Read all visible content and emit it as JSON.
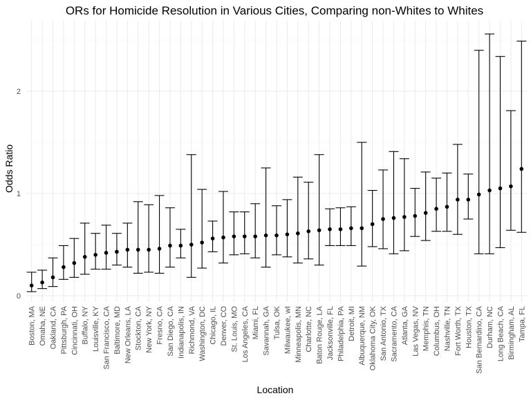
{
  "chart_data": {
    "type": "errorbar",
    "title": "ORs for Homicide Resolution in Various Cities, Comparing non-Whites to Whites",
    "xlabel": "Location",
    "ylabel": "Odds Ratio",
    "ylim": [
      -0.04,
      2.57
    ],
    "yticks": [
      0,
      1,
      2
    ],
    "grid": true,
    "legend": "none",
    "point_color": "#000000",
    "points": [
      {
        "city": "Boston, MA",
        "estimate": 0.1,
        "lower": 0.04,
        "upper": 0.23
      },
      {
        "city": "Omaha, NE",
        "estimate": 0.13,
        "lower": 0.07,
        "upper": 0.25
      },
      {
        "city": "Oakland, CA",
        "estimate": 0.18,
        "lower": 0.09,
        "upper": 0.37
      },
      {
        "city": "Pittsburgh, PA",
        "estimate": 0.28,
        "lower": 0.16,
        "upper": 0.49
      },
      {
        "city": "Cincinnati, OH",
        "estimate": 0.32,
        "lower": 0.18,
        "upper": 0.56
      },
      {
        "city": "Buffalo, NY",
        "estimate": 0.38,
        "lower": 0.21,
        "upper": 0.71
      },
      {
        "city": "Louisville, KY",
        "estimate": 0.4,
        "lower": 0.26,
        "upper": 0.61
      },
      {
        "city": "San Francisco, CA",
        "estimate": 0.42,
        "lower": 0.26,
        "upper": 0.69
      },
      {
        "city": "Baltimore, MD",
        "estimate": 0.43,
        "lower": 0.3,
        "upper": 0.61
      },
      {
        "city": "New Orleans, LA",
        "estimate": 0.45,
        "lower": 0.28,
        "upper": 0.71
      },
      {
        "city": "Stockton, CA",
        "estimate": 0.45,
        "lower": 0.22,
        "upper": 0.92
      },
      {
        "city": "New York, NY",
        "estimate": 0.45,
        "lower": 0.23,
        "upper": 0.89
      },
      {
        "city": "Fresno, CA",
        "estimate": 0.46,
        "lower": 0.22,
        "upper": 0.98
      },
      {
        "city": "San Diego, CA",
        "estimate": 0.49,
        "lower": 0.28,
        "upper": 0.86
      },
      {
        "city": "Indianapolis, IN",
        "estimate": 0.49,
        "lower": 0.37,
        "upper": 0.65
      },
      {
        "city": "Richmond, VA",
        "estimate": 0.5,
        "lower": 0.18,
        "upper": 1.38
      },
      {
        "city": "Washington, DC",
        "estimate": 0.52,
        "lower": 0.27,
        "upper": 1.04
      },
      {
        "city": "Chicago, IL",
        "estimate": 0.56,
        "lower": 0.43,
        "upper": 0.73
      },
      {
        "city": "Denver, CO",
        "estimate": 0.57,
        "lower": 0.32,
        "upper": 1.02
      },
      {
        "city": "St. Louis, MO",
        "estimate": 0.58,
        "lower": 0.4,
        "upper": 0.82
      },
      {
        "city": "Los Angeles, CA",
        "estimate": 0.58,
        "lower": 0.41,
        "upper": 0.82
      },
      {
        "city": "Miami, FL",
        "estimate": 0.58,
        "lower": 0.37,
        "upper": 0.9
      },
      {
        "city": "Savannah, GA",
        "estimate": 0.59,
        "lower": 0.28,
        "upper": 1.25
      },
      {
        "city": "Tulsa, OK",
        "estimate": 0.59,
        "lower": 0.4,
        "upper": 0.88
      },
      {
        "city": "Milwaukee, wI",
        "estimate": 0.6,
        "lower": 0.38,
        "upper": 0.94
      },
      {
        "city": "Minneapolis, MN",
        "estimate": 0.61,
        "lower": 0.32,
        "upper": 1.16
      },
      {
        "city": "Charlotte, NC",
        "estimate": 0.63,
        "lower": 0.36,
        "upper": 1.11
      },
      {
        "city": "Baton Rouge, LA",
        "estimate": 0.64,
        "lower": 0.3,
        "upper": 1.38
      },
      {
        "city": "Jacksonville, FL",
        "estimate": 0.65,
        "lower": 0.49,
        "upper": 0.85
      },
      {
        "city": "Philadelphia, PA",
        "estimate": 0.65,
        "lower": 0.49,
        "upper": 0.86
      },
      {
        "city": "Detroit, MI",
        "estimate": 0.66,
        "lower": 0.49,
        "upper": 0.87
      },
      {
        "city": "Albuquerque, NM",
        "estimate": 0.66,
        "lower": 0.29,
        "upper": 1.5
      },
      {
        "city": "Oklahoma City, OK",
        "estimate": 0.7,
        "lower": 0.48,
        "upper": 1.03
      },
      {
        "city": "San Antonio, TX",
        "estimate": 0.75,
        "lower": 0.46,
        "upper": 1.23
      },
      {
        "city": "Sacramento, CA",
        "estimate": 0.76,
        "lower": 0.41,
        "upper": 1.41
      },
      {
        "city": "Atlanta, GA",
        "estimate": 0.77,
        "lower": 0.44,
        "upper": 1.34
      },
      {
        "city": "Las Vegas, NV",
        "estimate": 0.78,
        "lower": 0.58,
        "upper": 1.05
      },
      {
        "city": "Memphis, TN",
        "estimate": 0.81,
        "lower": 0.54,
        "upper": 1.21
      },
      {
        "city": "Columbus, OH",
        "estimate": 0.85,
        "lower": 0.63,
        "upper": 1.15
      },
      {
        "city": "Nashville, TN",
        "estimate": 0.87,
        "lower": 0.63,
        "upper": 1.2
      },
      {
        "city": "Fort Worth, TX",
        "estimate": 0.94,
        "lower": 0.6,
        "upper": 1.48
      },
      {
        "city": "Houston, TX",
        "estimate": 0.94,
        "lower": 0.75,
        "upper": 1.19
      },
      {
        "city": "San Bernardino, CA",
        "estimate": 0.99,
        "lower": 0.41,
        "upper": 2.4
      },
      {
        "city": "Durham, NC",
        "estimate": 1.03,
        "lower": 0.41,
        "upper": 2.56
      },
      {
        "city": "Long Beach, CA",
        "estimate": 1.05,
        "lower": 0.47,
        "upper": 2.34
      },
      {
        "city": "Birmingham, AL",
        "estimate": 1.07,
        "lower": 0.64,
        "upper": 1.81
      },
      {
        "city": "Tampa, FL",
        "estimate": 1.24,
        "lower": 0.62,
        "upper": 2.49
      }
    ]
  }
}
